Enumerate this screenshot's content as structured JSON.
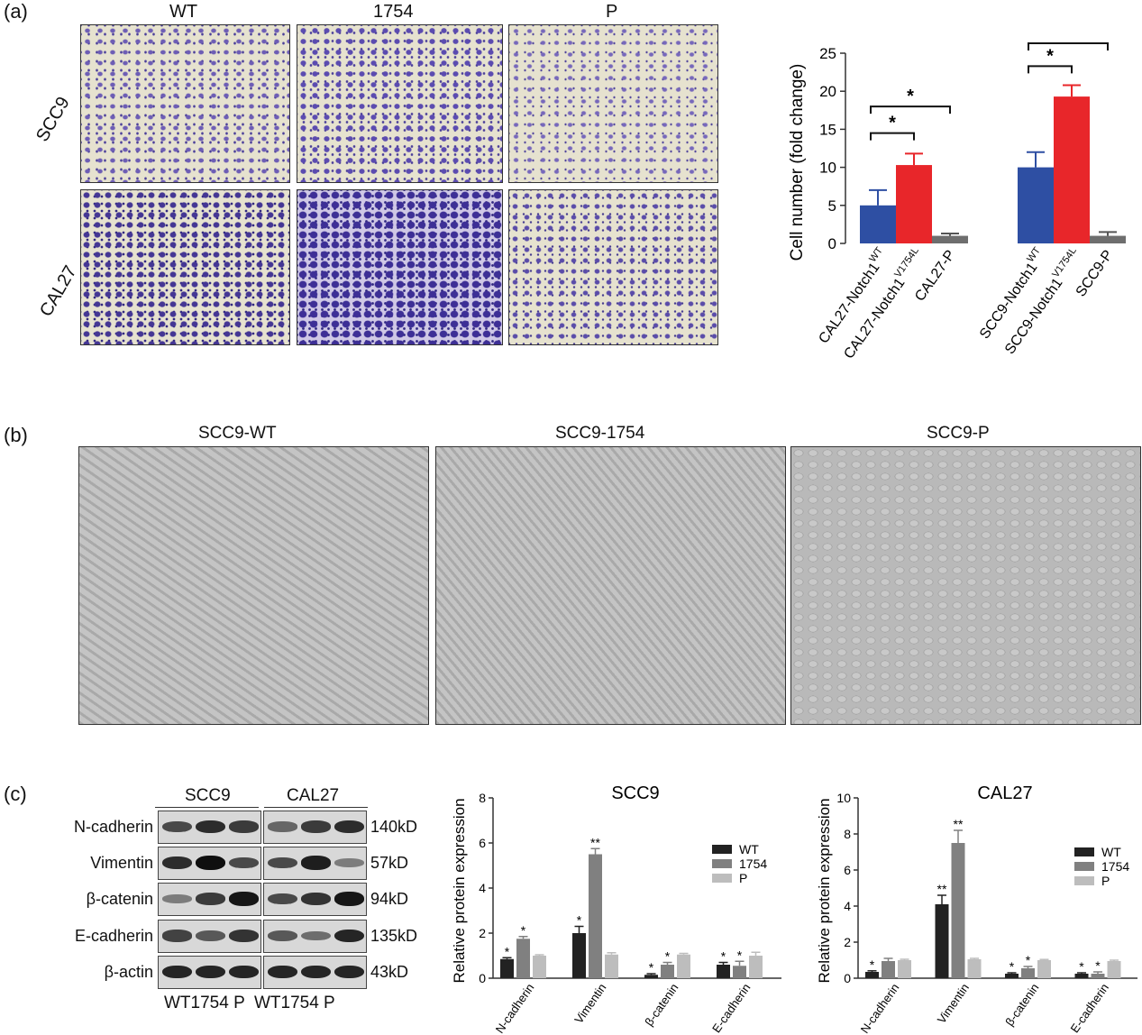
{
  "panel_a": {
    "letter": "(a)",
    "col_labels": [
      "WT",
      "1754",
      "P"
    ],
    "row_labels": [
      "SCC9",
      "CAL27"
    ]
  },
  "panel_b": {
    "letter": "(b)",
    "titles": [
      "SCC9-WT",
      "SCC9-1754",
      "SCC9-P"
    ]
  },
  "panel_c": {
    "letter": "(c)",
    "groups": [
      "SCC9",
      "CAL27"
    ],
    "proteins": [
      "N-cadherin",
      "Vimentin",
      "β-catenin",
      "E-cadherin",
      "β-actin"
    ],
    "sizes": [
      "140kD",
      "57kD",
      "94kD",
      "135kD",
      "43kD"
    ],
    "lanes": "WT1754 P  WT1754 P"
  },
  "chart_data": [
    {
      "type": "bar",
      "ylabel": "Cell number (fold change)",
      "ylim": [
        0,
        25
      ],
      "yticks": [
        0,
        5,
        10,
        15,
        20,
        25
      ],
      "categories": [
        "CAL27-Notch1 WT",
        "CAL27-Notch1 V1754L",
        "CAL27-P",
        "SCC9-Notch1 WT",
        "SCC9-Notch1 V1754L",
        "SCC9-P"
      ],
      "tick_labels": [
        {
          "main": "CAL27-Notch1",
          "sup": "WT"
        },
        {
          "main": "CAL27-Notch1",
          "sup": "V1754L"
        },
        {
          "main": "CAL27-P",
          "sup": ""
        },
        {
          "main": "SCC9-Notch1",
          "sup": "WT"
        },
        {
          "main": "SCC9-Notch1",
          "sup": "V1754L"
        },
        {
          "main": "SCC9-P",
          "sup": ""
        }
      ],
      "values": [
        5.0,
        10.3,
        1.0,
        10.0,
        19.3,
        1.0
      ],
      "errors": [
        2.0,
        1.5,
        0.3,
        2.0,
        1.5,
        0.5
      ],
      "colors": [
        "#2e4fa3",
        "#e8262a",
        "#6e6e6e",
        "#2e4fa3",
        "#e8262a",
        "#6e6e6e"
      ],
      "significance": [
        {
          "from": 0,
          "to": 1,
          "label": "*"
        },
        {
          "from": 0,
          "to": 2,
          "label": "*"
        },
        {
          "from": 3,
          "to": 4,
          "label": "*"
        },
        {
          "from": 3,
          "to": 5,
          "label": "**"
        }
      ]
    },
    {
      "type": "bar",
      "title": "SCC9",
      "ylabel": "Relative protein expression",
      "ylim": [
        0,
        8
      ],
      "yticks": [
        0,
        2,
        4,
        6,
        8
      ],
      "categories": [
        "N-cadherin",
        "Vimentin",
        "β-catenin",
        "E-cadherin"
      ],
      "series": [
        {
          "name": "WT",
          "color": "#222222",
          "values": [
            0.85,
            2.0,
            0.15,
            0.6
          ],
          "errors": [
            0.06,
            0.3,
            0.05,
            0.1
          ],
          "stars": [
            "*",
            "*",
            "*",
            "*"
          ]
        },
        {
          "name": "1754",
          "color": "#808080",
          "values": [
            1.75,
            5.5,
            0.6,
            0.55
          ],
          "errors": [
            0.1,
            0.25,
            0.1,
            0.2
          ],
          "stars": [
            "*",
            "**",
            "*",
            "*"
          ]
        },
        {
          "name": "P",
          "color": "#bdbdbd",
          "values": [
            1.0,
            1.05,
            1.05,
            1.0
          ],
          "errors": [
            0.04,
            0.08,
            0.05,
            0.15
          ],
          "stars": [
            "",
            "",
            "",
            ""
          ]
        }
      ],
      "legend": "right"
    },
    {
      "type": "bar",
      "title": "CAL27",
      "ylabel": "Relative protein expression",
      "ylim": [
        0,
        10
      ],
      "yticks": [
        0,
        2,
        4,
        6,
        8,
        10
      ],
      "categories": [
        "N-cadherin",
        "Vimentin",
        "β-catenin",
        "E-cadherin"
      ],
      "series": [
        {
          "name": "WT",
          "color": "#222222",
          "values": [
            0.35,
            4.1,
            0.25,
            0.25
          ],
          "errors": [
            0.06,
            0.5,
            0.05,
            0.05
          ],
          "stars": [
            "*",
            "**",
            "*",
            "*"
          ]
        },
        {
          "name": "1754",
          "color": "#808080",
          "values": [
            0.95,
            7.5,
            0.55,
            0.25
          ],
          "errors": [
            0.15,
            0.7,
            0.1,
            0.1
          ],
          "stars": [
            "",
            "**",
            "*",
            "*"
          ]
        },
        {
          "name": "P",
          "color": "#bdbdbd",
          "values": [
            1.0,
            1.05,
            1.0,
            0.95
          ],
          "errors": [
            0.05,
            0.05,
            0.04,
            0.05
          ],
          "stars": [
            "",
            "",
            "",
            ""
          ]
        }
      ],
      "legend": "right"
    }
  ]
}
